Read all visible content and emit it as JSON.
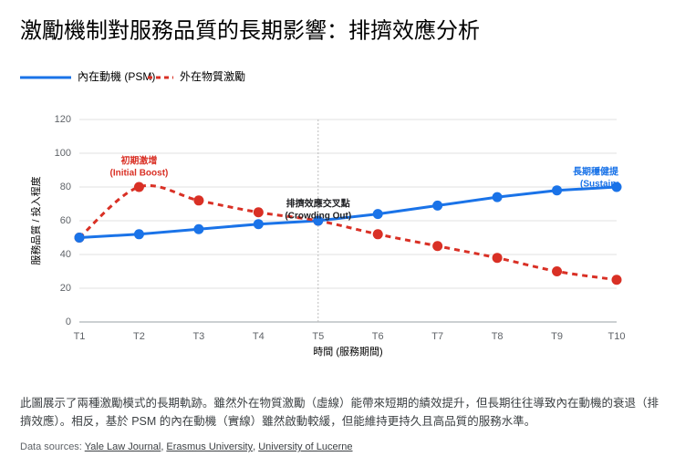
{
  "chart_data": {
    "type": "line",
    "title": "激勵機制對服務品質的長期影響：排擠效應分析",
    "categories": [
      "T1",
      "T2",
      "T3",
      "T4",
      "T5",
      "T6",
      "T7",
      "T8",
      "T9",
      "T10"
    ],
    "series": [
      {
        "name": "內在動機 (PSM)",
        "color": "#1a73e8",
        "dashed": false,
        "values": [
          50,
          52,
          55,
          58,
          60,
          64,
          69,
          74,
          78,
          80
        ]
      },
      {
        "name": "外在物質激勵",
        "color": "#d93025",
        "dashed": true,
        "values": [
          50,
          80,
          72,
          65,
          60,
          52,
          45,
          38,
          30,
          25
        ]
      }
    ],
    "ylim": [
      0,
      120
    ],
    "yticks": [
      0,
      20,
      40,
      60,
      80,
      100,
      120
    ],
    "grid": true,
    "y_label": "服務品質 / 投入程度",
    "x_label": "時間 (服務期間)",
    "annotations": [
      {
        "lines": [
          "初期激增",
          "(Initial Boost)"
        ],
        "color": "#d93025"
      },
      {
        "lines": [
          "排擠效應交叉點",
          "(Crowding Out)"
        ],
        "color": "#202124"
      },
      {
        "lines": [
          "長期穩健提升",
          "(Sustained)"
        ],
        "color": "#1a73e8"
      }
    ]
  },
  "description": "此圖展示了兩種激勵模式的長期軌跡。雖然外在物質激勵（虛線）能帶來短期的績效提升，但長期往往導致內在動機的衰退（排擠效應）。相反，基於 PSM 的內在動機（實線）雖然啟動較緩，但能維持更持久且高品質的服務水準。",
  "sources": {
    "label": "Data sources:",
    "links": [
      "Yale Law Journal",
      "Erasmus University",
      "University of Lucerne"
    ]
  }
}
